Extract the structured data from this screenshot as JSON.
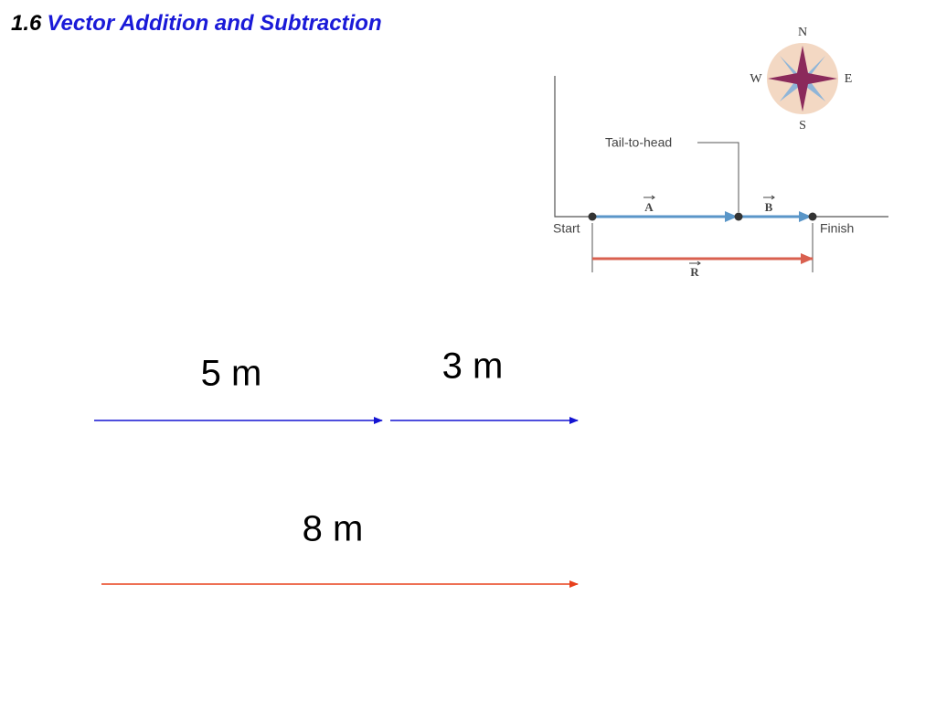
{
  "header": {
    "number": "1.6",
    "title": "Vector Addition and Subtraction"
  },
  "figure": {
    "compass": {
      "north": "N",
      "east": "E",
      "south": "S",
      "west": "W"
    },
    "tail_to_head": "Tail-to-head",
    "start": "Start",
    "finish": "Finish",
    "vectors": {
      "a": "A",
      "b": "B",
      "r": "R"
    }
  },
  "example": {
    "first_length": "5 m",
    "second_length": "3 m",
    "result_length": "8 m"
  }
}
